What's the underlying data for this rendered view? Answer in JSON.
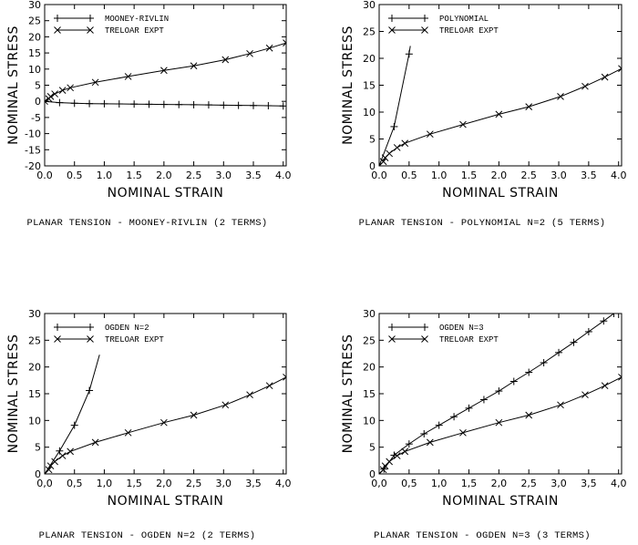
{
  "chart_data": [
    {
      "type": "line",
      "title": "PLANAR TENSION - MOONEY-RIVLIN (2 TERMS)",
      "xlabel": "NOMINAL STRAIN",
      "ylabel": "NOMINAL STRESS",
      "xlim": [
        0,
        4.05
      ],
      "ylim": [
        -20,
        30
      ],
      "xticks": [
        "0.0",
        "0.5",
        "1.0",
        "1.5",
        "2.0",
        "2.5",
        "3.0",
        "3.5",
        "4.0"
      ],
      "yticks": [
        "-20",
        "-15",
        "-10",
        "-5",
        "0",
        "5",
        "10",
        "15",
        "20",
        "25",
        "30"
      ],
      "legend_position": "top-left",
      "series": [
        {
          "name": "MOONEY-RIVLIN",
          "marker": "+",
          "x": [
            0,
            0.25,
            0.5,
            0.75,
            1.0,
            1.25,
            1.5,
            1.75,
            2.0,
            2.25,
            2.5,
            2.75,
            3.0,
            3.25,
            3.5,
            3.75,
            4.0
          ],
          "y": [
            0,
            -0.4,
            -0.6,
            -0.7,
            -0.75,
            -0.8,
            -0.85,
            -0.9,
            -0.95,
            -1.0,
            -1.05,
            -1.1,
            -1.2,
            -1.25,
            -1.3,
            -1.35,
            -1.45
          ]
        },
        {
          "name": "TRELOAR EXPT",
          "marker": "x",
          "x": [
            0,
            0.07,
            0.1,
            0.17,
            0.3,
            0.43,
            0.85,
            1.4,
            2.0,
            2.5,
            3.03,
            3.44,
            3.77,
            4.05
          ],
          "y": [
            0,
            0.8,
            1.5,
            2.3,
            3.4,
            4.2,
            5.9,
            7.7,
            9.6,
            11.0,
            12.9,
            14.8,
            16.5,
            18.1
          ]
        }
      ]
    },
    {
      "type": "line",
      "title": "PLANAR TENSION - POLYNOMIAL N=2 (5 TERMS)",
      "xlabel": "NOMINAL STRAIN",
      "ylabel": "NOMINAL STRESS",
      "xlim": [
        0,
        4.05
      ],
      "ylim": [
        0,
        30
      ],
      "xticks": [
        "0.0",
        "0.5",
        "1.0",
        "1.5",
        "2.0",
        "2.5",
        "3.0",
        "3.5",
        "4.0"
      ],
      "yticks": [
        "0",
        "5",
        "10",
        "15",
        "20",
        "25",
        "30"
      ],
      "legend_position": "top-left",
      "series": [
        {
          "name": "POLYNOMIAL",
          "marker": "+",
          "x": [
            0,
            0.25,
            0.5,
            0.52
          ],
          "y": [
            0,
            7.3,
            20.8,
            22.3
          ],
          "marked": [
            true,
            true,
            true,
            false
          ]
        },
        {
          "name": "TRELOAR EXPT",
          "marker": "x",
          "x": [
            0,
            0.07,
            0.1,
            0.17,
            0.3,
            0.43,
            0.85,
            1.4,
            2.0,
            2.5,
            3.03,
            3.44,
            3.77,
            4.05
          ],
          "y": [
            0,
            0.8,
            1.5,
            2.3,
            3.4,
            4.2,
            5.9,
            7.7,
            9.6,
            11.0,
            12.9,
            14.8,
            16.5,
            18.1
          ]
        }
      ]
    },
    {
      "type": "line",
      "title": "PLANAR TENSION - OGDEN N=2 (2 TERMS)",
      "xlabel": "NOMINAL STRAIN",
      "ylabel": "NOMINAL STRESS",
      "xlim": [
        0,
        4.05
      ],
      "ylim": [
        0,
        30
      ],
      "xticks": [
        "0,0",
        "0,5",
        "1,0",
        "1,5",
        "2,0",
        "2,5",
        "3,0",
        "3,5",
        "4,0"
      ],
      "yticks": [
        "0",
        "5",
        "10",
        "15",
        "20",
        "25",
        "30"
      ],
      "legend_position": "top-left",
      "series": [
        {
          "name": "OGDEN N=2",
          "marker": "+",
          "x": [
            0,
            0.25,
            0.5,
            0.75,
            0.92
          ],
          "y": [
            0,
            4.3,
            9.1,
            15.6,
            22.3
          ],
          "marked": [
            true,
            true,
            true,
            true,
            false
          ]
        },
        {
          "name": "TRELOAR EXPT",
          "marker": "x",
          "x": [
            0,
            0.07,
            0.1,
            0.17,
            0.3,
            0.43,
            0.85,
            1.4,
            2.0,
            2.5,
            3.03,
            3.44,
            3.77,
            4.05
          ],
          "y": [
            0,
            0.8,
            1.5,
            2.3,
            3.4,
            4.2,
            5.9,
            7.7,
            9.6,
            11.0,
            12.9,
            14.8,
            16.5,
            18.1
          ]
        }
      ]
    },
    {
      "type": "line",
      "title": "PLANAR TENSION - OGDEN N=3 (3 TERMS)",
      "xlabel": "NOMINAL STRAIN",
      "ylabel": "NOMINAL STRESS",
      "xlim": [
        0,
        4.05
      ],
      "ylim": [
        0,
        30
      ],
      "xticks": [
        "0,0",
        "0,5",
        "1,0",
        "1,5",
        "2,0",
        "2,5",
        "3,0",
        "3,5",
        "4,0"
      ],
      "yticks": [
        "0",
        "5",
        "10",
        "15",
        "20",
        "25",
        "30"
      ],
      "legend_position": "top-left",
      "series": [
        {
          "name": "OGDEN N=3",
          "marker": "+",
          "x": [
            0,
            0.08,
            0.25,
            0.5,
            0.75,
            1.0,
            1.25,
            1.5,
            1.75,
            2.0,
            2.25,
            2.5,
            2.75,
            3.0,
            3.25,
            3.5,
            3.75,
            3.92
          ],
          "y": [
            0,
            0.9,
            3.5,
            5.6,
            7.5,
            9.1,
            10.7,
            12.3,
            13.9,
            15.5,
            17.3,
            19.0,
            20.8,
            22.7,
            24.6,
            26.6,
            28.6,
            30.0
          ]
        },
        {
          "name": "TRELOAR EXPT",
          "marker": "x",
          "x": [
            0,
            0.07,
            0.1,
            0.17,
            0.3,
            0.43,
            0.85,
            1.4,
            2.0,
            2.5,
            3.03,
            3.44,
            3.77,
            4.05
          ],
          "y": [
            0,
            0.8,
            1.5,
            2.3,
            3.4,
            4.2,
            5.9,
            7.7,
            9.6,
            11.0,
            12.9,
            14.8,
            16.5,
            18.1
          ]
        }
      ]
    }
  ]
}
